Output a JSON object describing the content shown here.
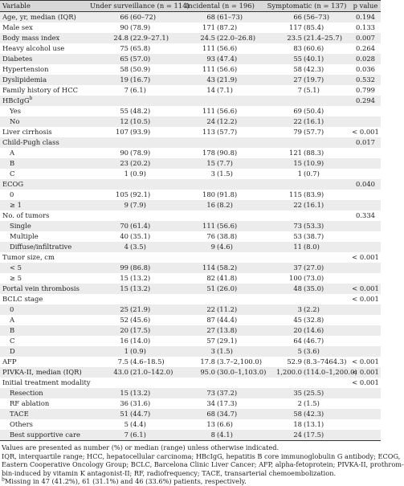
{
  "table": {
    "headers": [
      "Variable",
      "Under surveillance (n = 114)",
      "Incidental (n = 196)",
      "Symptomatic (n = 137)",
      "p value"
    ],
    "rows": [
      {
        "label": "Age, yr, median (IQR)",
        "sub": false,
        "sup": "",
        "c1": [
          "66",
          "(60–72)"
        ],
        "c2": [
          "68",
          "(61–73)"
        ],
        "c3": [
          "66",
          "(56–73)"
        ],
        "p": "0.194"
      },
      {
        "label": "Male sex",
        "sub": false,
        "sup": "",
        "c1": [
          "90",
          "(78.9)"
        ],
        "c2": [
          "171",
          "(87.2)"
        ],
        "c3": [
          "117",
          "(85.4)"
        ],
        "p": "0.133"
      },
      {
        "label": "Body mass index",
        "sub": false,
        "sup": "",
        "c1": [
          "24.8",
          "(22.9–27.1)"
        ],
        "c2": [
          "24.5",
          "(22.0–26.8)"
        ],
        "c3": [
          "23.5",
          "(21.4–25.7)"
        ],
        "p": "0.007"
      },
      {
        "label": "Heavy alcohol use",
        "sub": false,
        "sup": "",
        "c1": [
          "75",
          "(65.8)"
        ],
        "c2": [
          "111",
          "(56.6)"
        ],
        "c3": [
          "83",
          "(60.6)"
        ],
        "p": "0.264"
      },
      {
        "label": "Diabetes",
        "sub": false,
        "sup": "",
        "c1": [
          "65",
          "(57.0)"
        ],
        "c2": [
          "93",
          "(47.4)"
        ],
        "c3": [
          "55",
          "(40.1)"
        ],
        "p": "0.028"
      },
      {
        "label": "Hypertension",
        "sub": false,
        "sup": "",
        "c1": [
          "58",
          "(50.9)"
        ],
        "c2": [
          "111",
          "(56.6)"
        ],
        "c3": [
          "58",
          "(42.3)"
        ],
        "p": "0.036"
      },
      {
        "label": "Dyslipidemia",
        "sub": false,
        "sup": "",
        "c1": [
          "19",
          "(16.7)"
        ],
        "c2": [
          "43",
          "(21.9)"
        ],
        "c3": [
          "27",
          "(19.7)"
        ],
        "p": "0.532"
      },
      {
        "label": "Family history of HCC",
        "sub": false,
        "sup": "",
        "c1": [
          "7",
          "(6.1)"
        ],
        "c2": [
          "14",
          "(7.1)"
        ],
        "c3": [
          "7",
          "(5.1)"
        ],
        "p": "0.799"
      },
      {
        "label": "HBcIgG",
        "sub": false,
        "sup": "b",
        "c1": [
          "",
          ""
        ],
        "c2": [
          "",
          ""
        ],
        "c3": [
          "",
          ""
        ],
        "p": "0.294"
      },
      {
        "label": "Yes",
        "sub": true,
        "sup": "",
        "c1": [
          "55",
          "(48.2)"
        ],
        "c2": [
          "111",
          "(56.6)"
        ],
        "c3": [
          "69",
          "(50.4)"
        ],
        "p": ""
      },
      {
        "label": "No",
        "sub": true,
        "sup": "",
        "c1": [
          "12",
          "(10.5)"
        ],
        "c2": [
          "24",
          "(12.2)"
        ],
        "c3": [
          "22",
          "(16.1)"
        ],
        "p": ""
      },
      {
        "label": "Liver cirrhosis",
        "sub": false,
        "sup": "",
        "c1": [
          "107",
          "(93.9)"
        ],
        "c2": [
          "113",
          "(57.7)"
        ],
        "c3": [
          "79",
          "(57.7)"
        ],
        "p": "< 0.001"
      },
      {
        "label": "Child-Pugh class",
        "sub": false,
        "sup": "",
        "c1": [
          "",
          ""
        ],
        "c2": [
          "",
          ""
        ],
        "c3": [
          "",
          ""
        ],
        "p": "0.017"
      },
      {
        "label": "A",
        "sub": true,
        "sup": "",
        "c1": [
          "90",
          "(78.9)"
        ],
        "c2": [
          "178",
          "(90.8)"
        ],
        "c3": [
          "121",
          "(88.3)"
        ],
        "p": ""
      },
      {
        "label": "B",
        "sub": true,
        "sup": "",
        "c1": [
          "23",
          "(20.2)"
        ],
        "c2": [
          "15",
          "(7.7)"
        ],
        "c3": [
          "15",
          "(10.9)"
        ],
        "p": ""
      },
      {
        "label": "C",
        "sub": true,
        "sup": "",
        "c1": [
          "1",
          "(0.9)"
        ],
        "c2": [
          "3",
          "(1.5)"
        ],
        "c3": [
          "1",
          "(0.7)"
        ],
        "p": ""
      },
      {
        "label": "ECOG",
        "sub": false,
        "sup": "",
        "c1": [
          "",
          ""
        ],
        "c2": [
          "",
          ""
        ],
        "c3": [
          "",
          ""
        ],
        "p": "0.040"
      },
      {
        "label": "0",
        "sub": true,
        "sup": "",
        "c1": [
          "105",
          "(92.1)"
        ],
        "c2": [
          "180",
          "(91.8)"
        ],
        "c3": [
          "115",
          "(83.9)"
        ],
        "p": ""
      },
      {
        "label": "≥ 1",
        "sub": true,
        "sup": "",
        "c1": [
          "9",
          "(7.9)"
        ],
        "c2": [
          "16",
          "(8.2)"
        ],
        "c3": [
          "22",
          "(16.1)"
        ],
        "p": ""
      },
      {
        "label": "No. of tumors",
        "sub": false,
        "sup": "",
        "c1": [
          "",
          ""
        ],
        "c2": [
          "",
          ""
        ],
        "c3": [
          "",
          ""
        ],
        "p": "0.334"
      },
      {
        "label": "Single",
        "sub": true,
        "sup": "",
        "c1": [
          "70",
          "(61.4)"
        ],
        "c2": [
          "111",
          "(56.6)"
        ],
        "c3": [
          "73",
          "(53.3)"
        ],
        "p": ""
      },
      {
        "label": "Multiple",
        "sub": true,
        "sup": "",
        "c1": [
          "40",
          "(35.1)"
        ],
        "c2": [
          "76",
          "(38.8)"
        ],
        "c3": [
          "53",
          "(38.7)"
        ],
        "p": ""
      },
      {
        "label": "Diffuse/infiltrative",
        "sub": true,
        "sup": "",
        "c1": [
          "4",
          "(3.5)"
        ],
        "c2": [
          "9",
          "(4.6)"
        ],
        "c3": [
          "11",
          "(8.0)"
        ],
        "p": ""
      },
      {
        "label": "Tumor size, cm",
        "sub": false,
        "sup": "",
        "c1": [
          "",
          ""
        ],
        "c2": [
          "",
          ""
        ],
        "c3": [
          "",
          ""
        ],
        "p": "< 0.001"
      },
      {
        "label": "< 5",
        "sub": true,
        "sup": "",
        "c1": [
          "99",
          "(86.8)"
        ],
        "c2": [
          "114",
          "(58.2)"
        ],
        "c3": [
          "37",
          "(27.0)"
        ],
        "p": ""
      },
      {
        "label": "≥ 5",
        "sub": true,
        "sup": "",
        "c1": [
          "15",
          "(13.2)"
        ],
        "c2": [
          "82",
          "(41.8)"
        ],
        "c3": [
          "100",
          "(73.0)"
        ],
        "p": ""
      },
      {
        "label": "Portal vein thrombosis",
        "sub": false,
        "sup": "",
        "c1": [
          "15",
          "(13.2)"
        ],
        "c2": [
          "51",
          "(26.0)"
        ],
        "c3": [
          "48",
          "(35.0)"
        ],
        "p": "< 0.001"
      },
      {
        "label": "BCLC stage",
        "sub": false,
        "sup": "",
        "c1": [
          "",
          ""
        ],
        "c2": [
          "",
          ""
        ],
        "c3": [
          "",
          ""
        ],
        "p": "< 0.001"
      },
      {
        "label": "0",
        "sub": true,
        "sup": "",
        "c1": [
          "25",
          "(21.9)"
        ],
        "c2": [
          "22",
          "(11.2)"
        ],
        "c3": [
          "3",
          "(2.2)"
        ],
        "p": ""
      },
      {
        "label": "A",
        "sub": true,
        "sup": "",
        "c1": [
          "52",
          "(45.6)"
        ],
        "c2": [
          "87",
          "(44.4)"
        ],
        "c3": [
          "45",
          "(32.8)"
        ],
        "p": ""
      },
      {
        "label": "B",
        "sub": true,
        "sup": "",
        "c1": [
          "20",
          "(17.5)"
        ],
        "c2": [
          "27",
          "(13.8)"
        ],
        "c3": [
          "20",
          "(14.6)"
        ],
        "p": ""
      },
      {
        "label": "C",
        "sub": true,
        "sup": "",
        "c1": [
          "16",
          "(14.0)"
        ],
        "c2": [
          "57",
          "(29.1)"
        ],
        "c3": [
          "64",
          "(46.7)"
        ],
        "p": ""
      },
      {
        "label": "D",
        "sub": true,
        "sup": "",
        "c1": [
          "1",
          "(0.9)"
        ],
        "c2": [
          "3",
          "(1.5)"
        ],
        "c3": [
          "5",
          "(3.6)"
        ],
        "p": ""
      },
      {
        "label": "AFP",
        "sub": false,
        "sup": "",
        "c1": [
          "7.5",
          "(4.6–18.5)"
        ],
        "c2": [
          "17.8",
          "(3.7–2,100.0)"
        ],
        "c3": [
          "52.9",
          "(8.3–7464.3)"
        ],
        "p": "< 0.001"
      },
      {
        "label": "PIVKA-II, median (IQR)",
        "sub": false,
        "sup": "",
        "c1": [
          "43.0",
          "(21.0–142.0)"
        ],
        "c2": [
          "95.0",
          "(30.0–1,103.0)"
        ],
        "c3": [
          "1,200.0",
          "(114.0–1,200.0)"
        ],
        "p": "< 0.001"
      },
      {
        "label": "Initial treatment modality",
        "sub": false,
        "sup": "",
        "c1": [
          "",
          ""
        ],
        "c2": [
          "",
          ""
        ],
        "c3": [
          "",
          ""
        ],
        "p": "< 0.001"
      },
      {
        "label": "Resection",
        "sub": true,
        "sup": "",
        "c1": [
          "15",
          "(13.2)"
        ],
        "c2": [
          "73",
          "(37.2)"
        ],
        "c3": [
          "35",
          "(25.5)"
        ],
        "p": ""
      },
      {
        "label": "RF ablation",
        "sub": true,
        "sup": "",
        "c1": [
          "36",
          "(31.6)"
        ],
        "c2": [
          "34",
          "(17.3)"
        ],
        "c3": [
          "2",
          "(1.5)"
        ],
        "p": ""
      },
      {
        "label": "TACE",
        "sub": true,
        "sup": "",
        "c1": [
          "51",
          "(44.7)"
        ],
        "c2": [
          "68",
          "(34.7)"
        ],
        "c3": [
          "58",
          "(42.3)"
        ],
        "p": ""
      },
      {
        "label": "Others",
        "sub": true,
        "sup": "",
        "c1": [
          "5",
          "(4.4)"
        ],
        "c2": [
          "13",
          "(6.6)"
        ],
        "c3": [
          "18",
          "(13.1)"
        ],
        "p": ""
      },
      {
        "label": "Best supportive care",
        "sub": true,
        "sup": "",
        "c1": [
          "7",
          "(6.1)"
        ],
        "c2": [
          "8",
          "(4.1)"
        ],
        "c3": [
          "24",
          "(17.5)"
        ],
        "p": ""
      }
    ]
  },
  "notes": [
    "Values are presented as number (%) or median (range) unless otherwise indicated.",
    "IQR, interquartile range; HCC, hepatocellular carcinoma; HBcIgG, hepatitis B core immunoglobulin G antibody; ECOG,",
    "Eastern Cooperative Oncology Group; BCLC, Barcelona Clinic Liver Cancer; AFP, alpha-fetoprotein; PIVKA-II, prothrom-",
    "bin-induced by vitamin K antagonist-II; RF, radiofrequency; TACE, transarterial chemoembolization.",
    "Missing in 47 (41.2%), 61 (31.1%) and 46 (33.6%) patients, respectively."
  ],
  "footnote_mark": "b"
}
